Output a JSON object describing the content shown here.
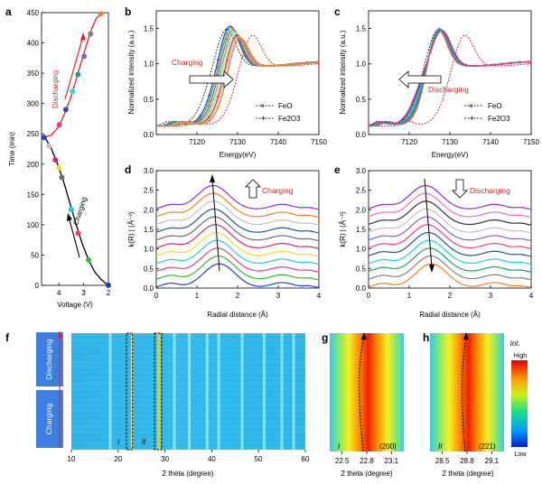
{
  "figure_panels": [
    "a",
    "b",
    "c",
    "d",
    "e",
    "f",
    "g",
    "h"
  ],
  "chart_data": [
    {
      "panel": "a",
      "type": "line",
      "xlabel": "Voltage (V)",
      "ylabel": "Time (min)",
      "xlim": [
        4.7,
        2.0
      ],
      "ylim": [
        0,
        450
      ],
      "xticks": [
        "4",
        "3",
        "2"
      ],
      "yticks": [
        "0",
        "50",
        "100",
        "150",
        "200",
        "250",
        "300",
        "350",
        "400",
        "450"
      ],
      "annotations": {
        "upper": "Discharging",
        "lower": "Charging"
      },
      "curve_charging": [
        [
          2.0,
          0
        ],
        [
          2.1,
          3
        ],
        [
          2.3,
          10
        ],
        [
          2.55,
          22
        ],
        [
          2.8,
          42
        ],
        [
          3.05,
          68
        ],
        [
          3.3,
          100
        ],
        [
          3.55,
          135
        ],
        [
          3.8,
          170
        ],
        [
          4.05,
          200
        ],
        [
          4.3,
          225
        ],
        [
          4.5,
          240
        ],
        [
          4.6,
          244
        ]
      ],
      "curve_discharging": [
        [
          4.6,
          244
        ],
        [
          4.3,
          248
        ],
        [
          4.0,
          262
        ],
        [
          3.75,
          285
        ],
        [
          3.5,
          312
        ],
        [
          3.3,
          340
        ],
        [
          3.1,
          368
        ],
        [
          2.9,
          395
        ],
        [
          2.7,
          420
        ],
        [
          2.5,
          440
        ],
        [
          2.3,
          448
        ]
      ],
      "markers": [
        {
          "v": 2.0,
          "t": 0,
          "c": "#1f3fd8"
        },
        {
          "v": 2.8,
          "t": 42,
          "c": "#2dbb2d"
        },
        {
          "v": 3.22,
          "t": 86,
          "c": "#e8407a"
        },
        {
          "v": 3.5,
          "t": 125,
          "c": "#1ccfe0"
        },
        {
          "v": 3.88,
          "t": 178,
          "c": "#6b6b6b"
        },
        {
          "v": 4.0,
          "t": 194,
          "c": "#f0e020"
        },
        {
          "v": 4.14,
          "t": 207,
          "c": "#d4267a"
        },
        {
          "v": 4.4,
          "t": 230,
          "c": "#bfbfbf"
        },
        {
          "v": 4.6,
          "t": 244,
          "c": "#1f3fd8"
        },
        {
          "v": 3.98,
          "t": 265,
          "c": "#e8407a"
        },
        {
          "v": 3.72,
          "t": 290,
          "c": "#2250a8"
        },
        {
          "v": 3.45,
          "t": 320,
          "c": "#39d0d8"
        },
        {
          "v": 3.23,
          "t": 348,
          "c": "#1fa06a"
        },
        {
          "v": 2.98,
          "t": 378,
          "c": "#8860c0"
        },
        {
          "v": 2.72,
          "t": 415,
          "c": "#808080"
        },
        {
          "v": 2.3,
          "t": 448,
          "c": "#f08020"
        }
      ]
    },
    {
      "panel": "b",
      "type": "line",
      "xlabel": "Energy(eV)",
      "ylabel": "Normalized intensity (a.u.)",
      "xlim": [
        7110,
        7150
      ],
      "ylim": [
        0,
        1.75
      ],
      "xticks": [
        "7120",
        "7130",
        "7140",
        "7150"
      ],
      "yticks": [
        "0.0",
        "0.5",
        "1.0",
        "1.5"
      ],
      "annotation": "Charging",
      "legend": [
        "FeO",
        "Fe2O3"
      ],
      "series": [
        {
          "name": "FeO",
          "edge": 7122,
          "peak": 7127.2,
          "height": 1.52,
          "color": "#333333"
        },
        {
          "name": "Fe2O3",
          "edge": 7129,
          "peak": 7133.5,
          "height": 1.45,
          "color": "#e02020"
        },
        {
          "name": "0",
          "edge": 7123.5,
          "peak": 7128,
          "height": 1.58,
          "color": "#1f3fd8"
        },
        {
          "name": "1",
          "edge": 7124.0,
          "peak": 7128.3,
          "height": 1.56,
          "color": "#2dbb2d"
        },
        {
          "name": "2",
          "edge": 7124.5,
          "peak": 7128.6,
          "height": 1.54,
          "color": "#e8407a"
        },
        {
          "name": "3",
          "edge": 7125.0,
          "peak": 7129.0,
          "height": 1.52,
          "color": "#1ccfe0"
        },
        {
          "name": "4",
          "edge": 7125.5,
          "peak": 7129.3,
          "height": 1.5,
          "color": "#f0e020"
        },
        {
          "name": "5",
          "edge": 7126.0,
          "peak": 7129.6,
          "height": 1.48,
          "color": "#d4267a"
        },
        {
          "name": "6",
          "edge": 7126.5,
          "peak": 7129.9,
          "height": 1.47,
          "color": "#bfbfbf"
        },
        {
          "name": "7",
          "edge": 7127.0,
          "peak": 7130.2,
          "height": 1.46,
          "color": "#f08020"
        }
      ]
    },
    {
      "panel": "c",
      "type": "line",
      "xlabel": "Energy(eV)",
      "ylabel": "Normalized intensity (a.u.)",
      "xlim": [
        7110,
        7150
      ],
      "ylim": [
        0,
        1.75
      ],
      "xticks": [
        "7120",
        "7130",
        "7140",
        "7150"
      ],
      "yticks": [
        "0.0",
        "0.5",
        "1.0",
        "1.5"
      ],
      "annotation": "Discharging",
      "legend": [
        "FeO",
        "Fe2O3"
      ],
      "series": [
        {
          "name": "FeO",
          "edge": 7122,
          "peak": 7127.0,
          "height": 1.52,
          "color": "#333333"
        },
        {
          "name": "Fe2O3",
          "edge": 7129,
          "peak": 7133.5,
          "height": 1.45,
          "color": "#e02020"
        },
        {
          "name": "0",
          "edge": 7124.0,
          "peak": 7126.8,
          "height": 1.6,
          "color": "#f08020"
        },
        {
          "name": "1",
          "edge": 7123.6,
          "peak": 7127.0,
          "height": 1.58,
          "color": "#808080"
        },
        {
          "name": "2",
          "edge": 7123.2,
          "peak": 7127.2,
          "height": 1.56,
          "color": "#8860c0"
        },
        {
          "name": "3",
          "edge": 7122.8,
          "peak": 7127.4,
          "height": 1.54,
          "color": "#1fa06a"
        },
        {
          "name": "4",
          "edge": 7122.4,
          "peak": 7127.6,
          "height": 1.52,
          "color": "#39d0d8"
        },
        {
          "name": "5",
          "edge": 7122.0,
          "peak": 7127.8,
          "height": 1.5,
          "color": "#2250a8"
        },
        {
          "name": "6",
          "edge": 7121.6,
          "peak": 7128.0,
          "height": 1.49,
          "color": "#e8407a"
        }
      ]
    },
    {
      "panel": "d",
      "type": "line",
      "xlabel": "Radial distance (Å)",
      "ylabel": "k(R) | (Å⁻³)",
      "xlim": [
        0,
        4
      ],
      "ylim": [
        0,
        3.0
      ],
      "xticks": [
        "0",
        "1",
        "2",
        "3",
        "4"
      ],
      "yticks": [
        "0.0",
        "0.5",
        "1.0",
        "1.5",
        "2.0",
        "2.5",
        "3.0"
      ],
      "annotation": "Charging",
      "offsets": [
        0.0,
        0.2,
        0.4,
        0.6,
        0.8,
        1.0,
        1.2,
        1.4,
        1.6,
        1.8,
        2.0
      ],
      "peak_positions": [
        1.55,
        1.53,
        1.51,
        1.49,
        1.47,
        1.45,
        1.43,
        1.42,
        1.41,
        1.4,
        1.4
      ],
      "colors": [
        "#1f3fd8",
        "#2dbb2d",
        "#e8407a",
        "#1ccfe0",
        "#f0e020",
        "#d4267a",
        "#6b6b6b",
        "#2250a8",
        "#c0c0c0",
        "#f08020",
        "#8a2be2"
      ]
    },
    {
      "panel": "e",
      "type": "line",
      "xlabel": "Radial distance (Å)",
      "ylabel": "k(R) | (Å⁻³)",
      "xlim": [
        0,
        4
      ],
      "ylim": [
        0,
        3.0
      ],
      "xticks": [
        "0",
        "1",
        "2",
        "3",
        "4"
      ],
      "yticks": [
        "0.0",
        "0.5",
        "1.0",
        "1.5",
        "2.0",
        "2.5",
        "3.0"
      ],
      "annotation": "Discharging",
      "offsets": [
        0.0,
        0.2,
        0.4,
        0.6,
        0.8,
        1.0,
        1.2,
        1.4,
        1.6,
        1.8,
        2.0
      ],
      "peak_positions": [
        1.55,
        1.53,
        1.51,
        1.49,
        1.47,
        1.45,
        1.43,
        1.42,
        1.41,
        1.4,
        1.4
      ],
      "colors": [
        "#f08020",
        "#808080",
        "#1fa06a",
        "#1ccfe0",
        "#2250a8",
        "#e8407a",
        "#8860c0",
        "#c0c0c0",
        "#303030",
        "#ff66cc",
        "#8a2be2"
      ]
    },
    {
      "panel": "f",
      "type": "heatmap",
      "xlabel": "2 theta (degree)",
      "xlim": [
        10,
        60
      ],
      "xticks": [
        "10",
        "20",
        "30",
        "40",
        "50",
        "60"
      ],
      "side_labels": [
        "Discharging",
        "Charging"
      ],
      "region_labels": [
        "I",
        "II"
      ],
      "bright_lines": [
        18.3,
        23.0,
        28.7,
        32.0,
        35.2,
        39.0,
        41.5,
        46.5,
        51.2,
        55.0,
        57.5
      ]
    },
    {
      "panel": "g",
      "type": "heatmap",
      "xlabel": "2 theta (degree)",
      "xticks": [
        "22.5",
        "22.8",
        "23.1"
      ],
      "region_label": "I",
      "peak_label": "(200)"
    },
    {
      "panel": "h",
      "type": "heatmap",
      "xlabel": "2 theta (degree)",
      "xticks": [
        "28.5",
        "28.8",
        "29.1"
      ],
      "region_label": "II",
      "peak_label": "(221)"
    }
  ],
  "colorbar": {
    "title": "Int.",
    "high": "High",
    "low": "Low"
  }
}
